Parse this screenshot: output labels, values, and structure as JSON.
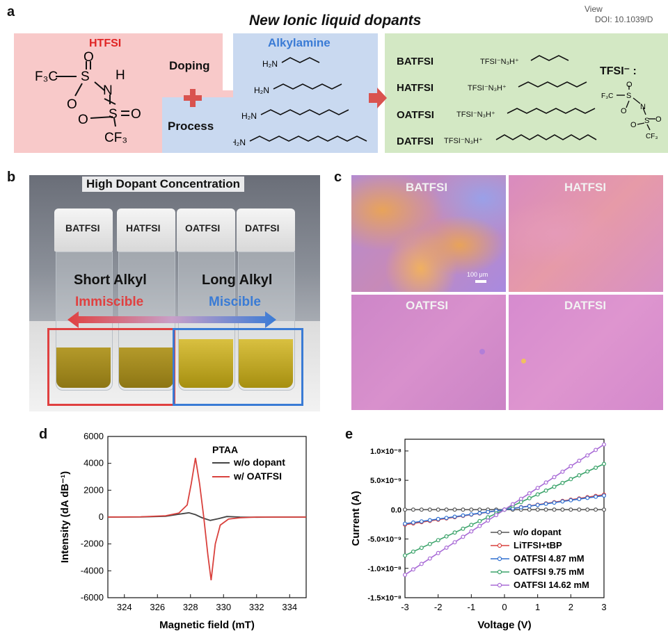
{
  "header": {
    "view_text": "View",
    "doi_text": "DOI: 10.1039/D"
  },
  "panel_a": {
    "label": "a",
    "title": "New Ionic liquid dopants",
    "htfsi_label": "HTFSI",
    "doping_label": "Doping",
    "process_label": "Process",
    "alkylamine_label": "Alkylamine",
    "amine_head": "H₂N",
    "products": [
      "BATFSI",
      "HATFSI",
      "OATFSI",
      "DATFSI"
    ],
    "tfsi_legend": "TFSI⁻ :",
    "product_formula": "TFSI⁻N₃H⁺",
    "htfsi_atoms": {
      "f3c": "F₃C",
      "s": "S",
      "o": "O",
      "n": "N",
      "h": "H",
      "cf3": "CF₃"
    },
    "colors": {
      "htfsi_bg": "#f8c9c9",
      "amine_bg": "#c9d9f0",
      "product_bg": "#d3e8c4",
      "plus": "#d9534f",
      "arrow": "#d9534f"
    }
  },
  "panel_b": {
    "label": "b",
    "title": "High Dopant Concentration",
    "vials": [
      "BATFSI",
      "HATFSI",
      "OATFSI",
      "DATFSI"
    ],
    "short_alkyl": "Short Alkyl",
    "long_alkyl": "Long Alkyl",
    "immiscible": "Immiscible",
    "miscible": "Miscible",
    "colors": {
      "immiscible": "#e04040",
      "miscible": "#3a7bd5"
    }
  },
  "panel_c": {
    "label": "c",
    "cells": [
      "BATFSI",
      "HATFSI",
      "OATFSI",
      "DATFSI"
    ],
    "scale_bar": "100 μm"
  },
  "chart_data": [
    {
      "panel": "d",
      "type": "line",
      "xlabel": "Magnetic field (mT)",
      "ylabel": "Intensity (dA dB⁻¹)",
      "xlim": [
        323,
        335
      ],
      "ylim": [
        -6000,
        6000
      ],
      "xticks": [
        324,
        326,
        328,
        330,
        332,
        334
      ],
      "yticks": [
        -6000,
        -4000,
        -2000,
        0,
        2000,
        4000,
        6000
      ],
      "legend_title": "PTAA",
      "legend_position": "top-right",
      "series": [
        {
          "name": "w/o dopant",
          "color": "#444444",
          "x": [
            323,
            325,
            326.5,
            327.5,
            327.9,
            328.3,
            328.7,
            329.2,
            329.7,
            330.2,
            331,
            332,
            333,
            335
          ],
          "y": [
            0,
            10,
            60,
            250,
            320,
            180,
            -50,
            -250,
            -120,
            40,
            0,
            -10,
            0,
            0
          ]
        },
        {
          "name": "w/ OATFSI",
          "color": "#d9413d",
          "x": [
            323,
            325,
            326.5,
            327.3,
            327.8,
            328.05,
            328.3,
            328.55,
            328.8,
            329.05,
            329.25,
            329.5,
            329.8,
            330.3,
            331,
            332,
            333,
            335
          ],
          "y": [
            0,
            20,
            100,
            300,
            900,
            2500,
            4400,
            2500,
            0,
            -2800,
            -4700,
            -2000,
            -600,
            -150,
            -50,
            0,
            0,
            0
          ]
        }
      ]
    },
    {
      "panel": "e",
      "type": "line",
      "xlabel": "Voltage (V)",
      "ylabel": "Current (A)",
      "xlim": [
        -3,
        3
      ],
      "ylim": [
        -1.5e-08,
        1.2e-08
      ],
      "xticks": [
        -3,
        -2,
        -1,
        0,
        1,
        2,
        3
      ],
      "yticks": [
        -1.5e-08,
        -1e-08,
        -5e-09,
        0,
        5e-09,
        1e-08
      ],
      "ytick_labels": [
        "-1.5×10⁻⁸",
        "-1.0×10⁻⁸",
        "-5.0×10⁻⁹",
        "0.0",
        "5.0×10⁻⁹",
        "1.0×10⁻⁸"
      ],
      "legend_position": "bottom-right",
      "series": [
        {
          "name": "w/o dopant",
          "color": "#555555",
          "slope": 0.0
        },
        {
          "name": "LiTFSI+tBP",
          "color": "#d9413d",
          "slope": 8.5e-10
        },
        {
          "name": "OATFSI 4.87 mM",
          "color": "#2f6fd0",
          "slope": 8e-10
        },
        {
          "name": "OATFSI 9.75 mM",
          "color": "#3aa36a",
          "slope": 2.6e-09
        },
        {
          "name": "OATFSI 14.62 mM",
          "color": "#a86ad6",
          "slope": 3.7e-09
        }
      ]
    }
  ]
}
